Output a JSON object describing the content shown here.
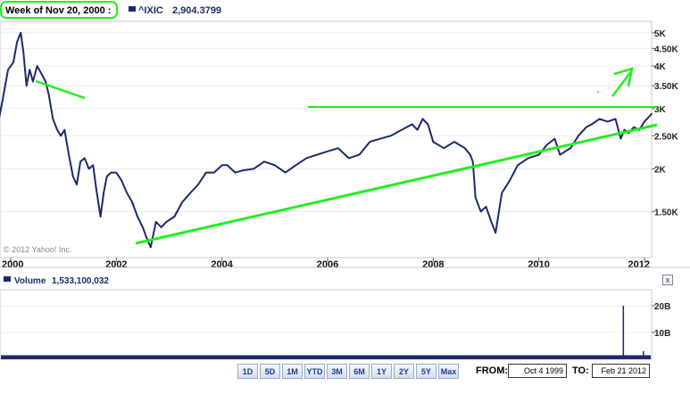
{
  "header": {
    "week_label": "Week of Nov 20, 2000 :",
    "symbol": "^IXIC",
    "value": "2,904.3799",
    "series_color": "#1c2a6b"
  },
  "copyright": "© 2012 Yahoo! Inc.",
  "volume": {
    "label": "Volume",
    "value": "1,533,100,032",
    "close_glyph": "x"
  },
  "range_buttons": [
    "1D",
    "5D",
    "1M",
    "YTD",
    "3M",
    "6M",
    "1Y",
    "2Y",
    "5Y",
    "Max"
  ],
  "date_range": {
    "from_label": "FROM:",
    "from_value": "Oct 4 1999",
    "to_label": "TO:",
    "to_value": "Feb 21 2012"
  },
  "annotation_color": "#22ee22",
  "chart_data": [
    {
      "type": "line",
      "scale": "log",
      "x_ticks": [
        "2000",
        "2002",
        "2004",
        "2006",
        "2008",
        "2010",
        "2012"
      ],
      "y_ticks": [
        "1.50K",
        "2K",
        "2.50K",
        "3K",
        "3.50K",
        "4K",
        "4.50K",
        "5K"
      ],
      "ylim": [
        1100,
        5400
      ],
      "series": [
        {
          "color": "#1c2a6b",
          "x": [
            1999.76,
            1999.85,
            1999.95,
            2000.05,
            2000.12,
            2000.19,
            2000.24,
            2000.3,
            2000.36,
            2000.42,
            2000.5,
            2000.58,
            2000.66,
            2000.72,
            2000.8,
            2000.88,
            2000.95,
            2001.02,
            2001.1,
            2001.18,
            2001.25,
            2001.32,
            2001.4,
            2001.48,
            2001.56,
            2001.62,
            2001.7,
            2001.76,
            2001.82,
            2001.9,
            2002.0,
            2002.1,
            2002.2,
            2002.3,
            2002.4,
            2002.5,
            2002.58,
            2002.65,
            2002.75,
            2002.85,
            2002.95,
            2003.1,
            2003.25,
            2003.4,
            2003.55,
            2003.7,
            2003.85,
            2004.0,
            2004.1,
            2004.25,
            2004.4,
            2004.6,
            2004.8,
            2005.0,
            2005.2,
            2005.4,
            2005.6,
            2005.8,
            2006.0,
            2006.2,
            2006.4,
            2006.6,
            2006.8,
            2007.0,
            2007.2,
            2007.4,
            2007.6,
            2007.7,
            2007.8,
            2007.9,
            2008.0,
            2008.2,
            2008.4,
            2008.6,
            2008.7,
            2008.75,
            2008.8,
            2008.9,
            2009.0,
            2009.1,
            2009.18,
            2009.3,
            2009.45,
            2009.6,
            2009.8,
            2010.0,
            2010.15,
            2010.3,
            2010.4,
            2010.5,
            2010.6,
            2010.75,
            2010.9,
            2011.0,
            2011.15,
            2011.3,
            2011.45,
            2011.55,
            2011.62,
            2011.7,
            2011.8,
            2011.9,
            2012.0,
            2012.14
          ],
          "values": [
            2700,
            3200,
            3900,
            4100,
            4700,
            5000,
            4400,
            3500,
            3900,
            3600,
            4000,
            3800,
            3600,
            3300,
            2800,
            2600,
            2500,
            2600,
            2200,
            1900,
            1800,
            2100,
            2150,
            2000,
            2050,
            1750,
            1450,
            1700,
            1900,
            1950,
            1950,
            1850,
            1700,
            1600,
            1450,
            1350,
            1250,
            1180,
            1400,
            1350,
            1400,
            1450,
            1600,
            1700,
            1800,
            1950,
            1950,
            2050,
            2050,
            1950,
            1980,
            2000,
            2100,
            2050,
            1950,
            2050,
            2150,
            2200,
            2250,
            2300,
            2150,
            2200,
            2400,
            2450,
            2500,
            2600,
            2700,
            2600,
            2800,
            2700,
            2400,
            2300,
            2400,
            2300,
            2200,
            2100,
            1650,
            1500,
            1550,
            1400,
            1300,
            1700,
            1850,
            2050,
            2150,
            2200,
            2350,
            2450,
            2200,
            2250,
            2300,
            2500,
            2650,
            2700,
            2800,
            2750,
            2800,
            2450,
            2600,
            2550,
            2650,
            2600,
            2750,
            2900
          ]
        }
      ]
    },
    {
      "type": "bar",
      "series_label": "Volume",
      "y_ticks": [
        "10B",
        "20B"
      ],
      "ylim": [
        0,
        26000000000
      ],
      "baseline_volume": 1500000000,
      "spikes": [
        {
          "x": 2011.6,
          "value": 20000000000
        },
        {
          "x": 2011.98,
          "value": 3000000000
        }
      ]
    }
  ]
}
